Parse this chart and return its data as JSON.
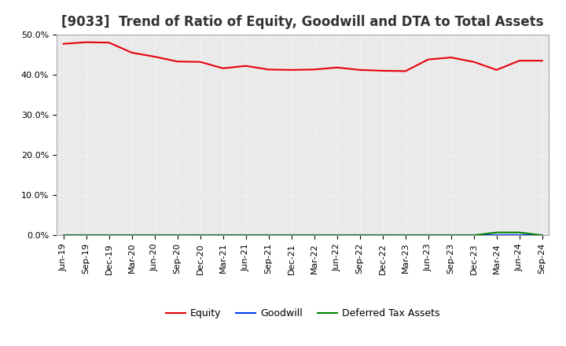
{
  "title": "[9033]  Trend of Ratio of Equity, Goodwill and DTA to Total Assets",
  "x_labels": [
    "Jun-19",
    "Sep-19",
    "Dec-19",
    "Mar-20",
    "Jun-20",
    "Sep-20",
    "Dec-20",
    "Mar-21",
    "Jun-21",
    "Sep-21",
    "Dec-21",
    "Mar-22",
    "Jun-22",
    "Sep-22",
    "Dec-22",
    "Mar-23",
    "Jun-23",
    "Sep-23",
    "Dec-23",
    "Mar-24",
    "Jun-24",
    "Sep-24"
  ],
  "equity": [
    0.477,
    0.481,
    0.48,
    0.455,
    0.445,
    0.433,
    0.432,
    0.416,
    0.422,
    0.413,
    0.412,
    0.413,
    0.418,
    0.412,
    0.41,
    0.409,
    0.438,
    0.443,
    0.432,
    0.412,
    0.435,
    0.435
  ],
  "goodwill": [
    0,
    0,
    0,
    0,
    0,
    0,
    0,
    0,
    0,
    0,
    0,
    0,
    0,
    0,
    0,
    0,
    0,
    0,
    0,
    0,
    0,
    0
  ],
  "dta": [
    0,
    0,
    0,
    0,
    0,
    0,
    0,
    0,
    0,
    0,
    0,
    0,
    0,
    0,
    0,
    0,
    0,
    0,
    0,
    0.007,
    0.007,
    0
  ],
  "equity_color": "#e8000a",
  "goodwill_color": "#0040ff",
  "dta_color": "#008000",
  "ylim": [
    0.0,
    0.5
  ],
  "yticks": [
    0.0,
    0.1,
    0.2,
    0.3,
    0.4,
    0.5
  ],
  "ytick_labels": [
    "0.0%",
    "10.0%",
    "20.0%",
    "30.0%",
    "40.0%",
    "50.0%"
  ],
  "legend_labels": [
    "Equity",
    "Goodwill",
    "Deferred Tax Assets"
  ],
  "bg_color": "#ffffff",
  "plot_bg_color": "#eaeaea",
  "grid_color": "#ffffff",
  "title_fontsize": 12,
  "tick_fontsize": 8
}
